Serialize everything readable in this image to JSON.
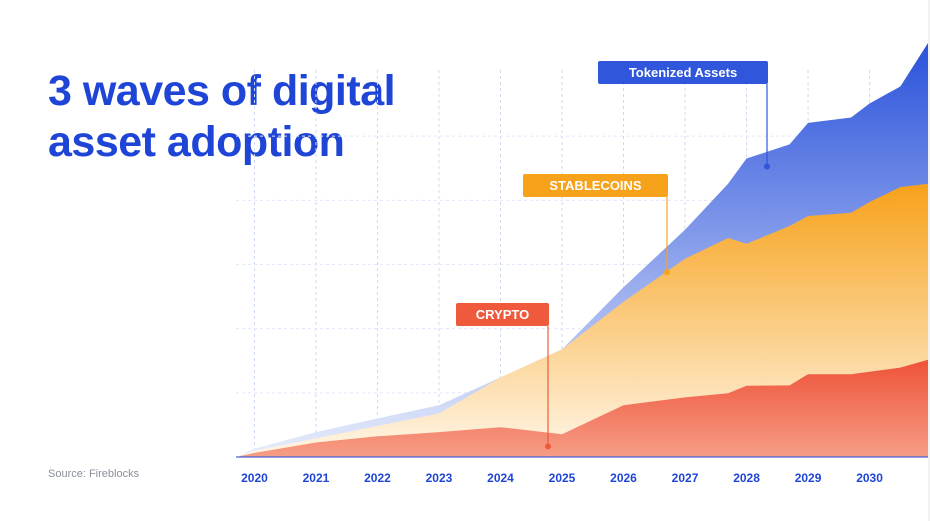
{
  "heading": {
    "line1": "3 waves of digital",
    "line2": "asset adoption"
  },
  "source": "Source: Fireblocks",
  "colors": {
    "brand": "#1f45d6",
    "crypto": "#ef5a3c",
    "stablecoins": "#f7a21b",
    "tokenized": "#2f56db"
  },
  "chart_data": {
    "type": "area",
    "stacked": true,
    "title": "3 waves of digital asset adoption",
    "xlabel": "",
    "ylabel": "",
    "xlim": [
      2019.7,
      2030.95
    ],
    "ylim": [
      0,
      100
    ],
    "xticks": [
      "2020",
      "2021",
      "2022",
      "2023",
      "2024",
      "2025",
      "2026",
      "2027",
      "2028",
      "2029",
      "2030"
    ],
    "grid": true,
    "series": [
      {
        "name": "CRYPTO",
        "x": [
          2019.7,
          2020,
          2021,
          2022,
          2023,
          2024,
          2025,
          2026,
          2027,
          2027.7,
          2028,
          2028.7,
          2029,
          2029.7,
          2030,
          2030.5,
          2030.95
        ],
        "values": [
          0,
          1,
          3.5,
          5,
          6,
          7.2,
          5.5,
          12.5,
          14.4,
          15.4,
          17.2,
          17.3,
          20,
          20,
          20.6,
          21.6,
          23.5
        ]
      },
      {
        "name": "STABLECOINS",
        "x": [
          2019.7,
          2020,
          2021,
          2022,
          2023,
          2024,
          2025,
          2026,
          2027,
          2027.7,
          2028,
          2028.7,
          2029,
          2029.7,
          2030,
          2030.5,
          2030.95
        ],
        "values": [
          0,
          0.5,
          1,
          2.5,
          4.5,
          12,
          20.5,
          25,
          33.5,
          37.5,
          34.3,
          38.5,
          38.2,
          39,
          41,
          43.6,
          42.5
        ]
      },
      {
        "name": "Tokenized Assets",
        "x": [
          2019.7,
          2020,
          2021,
          2022,
          2023,
          2024,
          2025,
          2026,
          2027,
          2027.7,
          2028,
          2028.7,
          2029,
          2029.7,
          2030,
          2030.5,
          2030.95
        ],
        "values": [
          0,
          0.5,
          1.5,
          1.8,
          2,
          0,
          0,
          3.5,
          7,
          13.1,
          20.6,
          19.7,
          22.5,
          23,
          23.8,
          24.3,
          34
        ]
      }
    ],
    "annotations": [
      {
        "label": "Tokenized Assets",
        "series": "Tokenized Assets",
        "x": 2028.5
      },
      {
        "label": "STABLECOINS",
        "series": "STABLECOINS",
        "x": 2027.15
      },
      {
        "label": "CRYPTO",
        "series": "CRYPTO",
        "x": 2025.2
      }
    ]
  }
}
